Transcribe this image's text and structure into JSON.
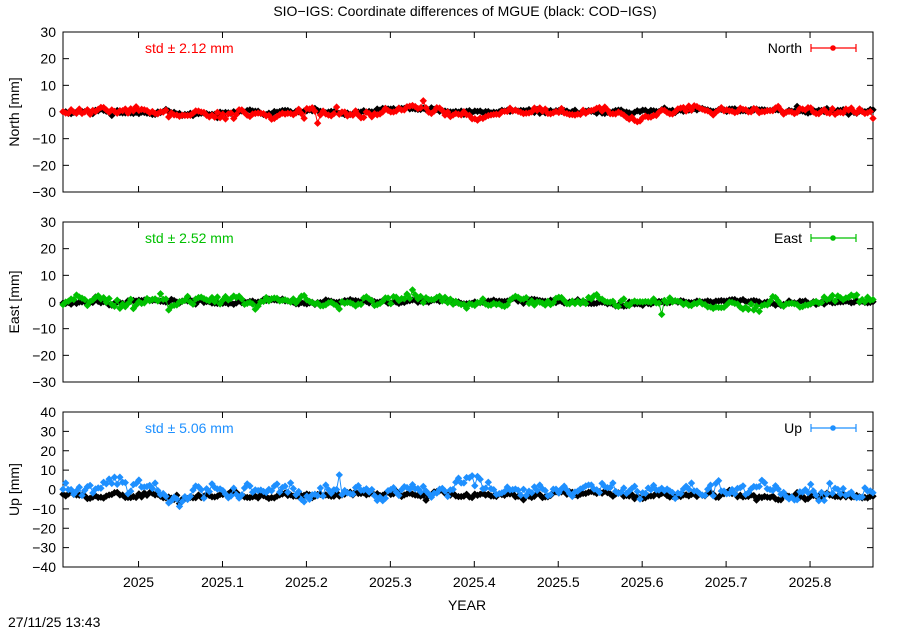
{
  "page": {
    "title": "SIO−IGS: Coordinate differences of MGUE (black: COD−IGS)",
    "xlabel": "YEAR",
    "timestamp": "27/11/25 13:43"
  },
  "chart_data": [
    {
      "type": "line",
      "panel": "north",
      "ylabel": "North [mm]",
      "ylim": [
        -30,
        30
      ],
      "yticks": [
        30,
        20,
        10,
        0,
        -10,
        -20,
        -30
      ],
      "xlim": [
        2024.91,
        2025.875
      ],
      "std_label": "std ± 2.12 mm",
      "legend": "North",
      "legend_position": "top-right",
      "color": "#ff0000",
      "series": [
        {
          "name": "SIO−IGS",
          "color": "#ff0000",
          "amplitude": 2.2,
          "seed": 11
        },
        {
          "name": "COD−IGS",
          "color": "#000000",
          "amplitude": 1.1,
          "seed": 12
        }
      ]
    },
    {
      "type": "line",
      "panel": "east",
      "ylabel": "East [mm]",
      "ylim": [
        -30,
        30
      ],
      "yticks": [
        30,
        20,
        10,
        0,
        -10,
        -20,
        -30
      ],
      "xlim": [
        2024.91,
        2025.875
      ],
      "std_label": "std ± 2.52 mm",
      "legend": "East",
      "legend_position": "top-right",
      "color": "#00c000",
      "series": [
        {
          "name": "SIO−IGS",
          "color": "#00c000",
          "amplitude": 2.5,
          "seed": 21
        },
        {
          "name": "COD−IGS",
          "color": "#000000",
          "amplitude": 1.0,
          "seed": 22
        }
      ]
    },
    {
      "type": "line",
      "panel": "up",
      "ylabel": "Up [mm]",
      "ylim": [
        -40,
        40
      ],
      "yticks": [
        40,
        30,
        20,
        10,
        0,
        -10,
        -20,
        -30,
        -40
      ],
      "xlim": [
        2024.91,
        2025.875
      ],
      "std_label": "std ± 5.06 mm",
      "legend": "Up",
      "legend_position": "top-right",
      "color": "#1e90ff",
      "series": [
        {
          "name": "SIO−IGS",
          "color": "#1e90ff",
          "amplitude": 5.0,
          "seed": 31
        },
        {
          "name": "COD−IGS",
          "color": "#000000",
          "amplitude": 1.8,
          "offset": -2.5,
          "seed": 32
        }
      ]
    }
  ],
  "x_ticks": [
    "2025",
    "2025.1",
    "2025.2",
    "2025.3",
    "2025.4",
    "2025.5",
    "2025.6",
    "2025.7",
    "2025.8"
  ],
  "x_tick_values": [
    2025.0,
    2025.1,
    2025.2,
    2025.3,
    2025.4,
    2025.5,
    2025.6,
    2025.7,
    2025.8
  ]
}
